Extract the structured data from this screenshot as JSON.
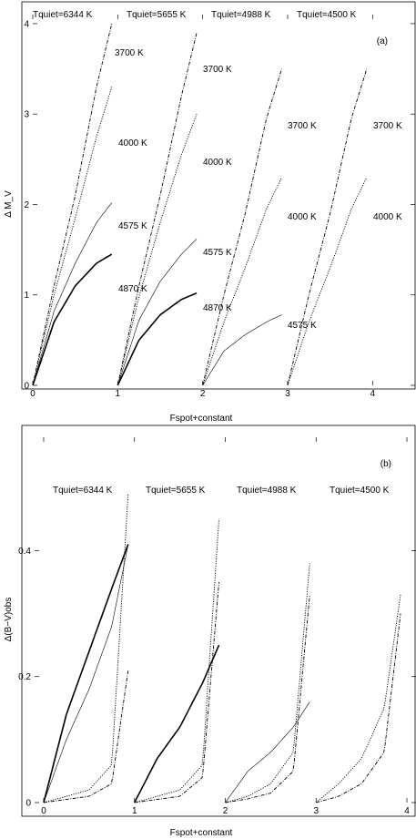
{
  "chart_data": [
    {
      "type": "line",
      "panel_label": "(a)",
      "xlabel": "Fspot+constant",
      "ylabel": "Δ M_V",
      "xlim": [
        0,
        4.5
      ],
      "ylim": [
        0,
        4.1
      ],
      "xticks": [
        0,
        1,
        2,
        3,
        4
      ],
      "yticks": [
        0,
        1,
        2,
        3,
        4
      ],
      "groups": [
        {
          "offset": 0,
          "tquiet": "Tquiet=6344 K",
          "series": [
            {
              "name": "3700 K",
              "style": "dashdot",
              "values": [
                0.45,
                1.1,
                2.1,
                3.3,
                4.0
              ]
            },
            {
              "name": "4000 K",
              "style": "dotted",
              "values": [
                0.42,
                1.0,
                1.85,
                2.75,
                3.3
              ]
            },
            {
              "name": "4575 K",
              "style": "thin",
              "values": [
                0.35,
                0.82,
                1.35,
                1.8,
                2.02
              ]
            },
            {
              "name": "4870 K",
              "style": "thick",
              "values": [
                0.3,
                0.7,
                1.1,
                1.35,
                1.45
              ]
            }
          ]
        },
        {
          "offset": 1,
          "tquiet": "Tquiet=5655 K",
          "series": [
            {
              "name": "3700 K",
              "style": "dashdot",
              "values": [
                0.45,
                1.1,
                2.1,
                3.2,
                3.9
              ]
            },
            {
              "name": "4000 K",
              "style": "dotted",
              "values": [
                0.42,
                0.98,
                1.8,
                2.55,
                3.0
              ]
            },
            {
              "name": "4575 K",
              "style": "thin",
              "values": [
                0.33,
                0.72,
                1.15,
                1.45,
                1.62
              ]
            },
            {
              "name": "4870 K",
              "style": "thick",
              "values": [
                0.22,
                0.5,
                0.78,
                0.95,
                1.02
              ]
            }
          ]
        },
        {
          "offset": 2,
          "tquiet": "Tquiet=4988 K",
          "series": [
            {
              "name": "3700 K",
              "style": "dashdot",
              "values": [
                0.42,
                1.0,
                1.9,
                2.95,
                3.5
              ]
            },
            {
              "name": "4000 K",
              "style": "dotted",
              "values": [
                0.3,
                0.7,
                1.3,
                1.95,
                2.3
              ]
            },
            {
              "name": "4575 K",
              "style": "thin",
              "values": [
                0.18,
                0.38,
                0.56,
                0.7,
                0.78
              ]
            }
          ]
        },
        {
          "offset": 3,
          "tquiet": "Tquiet=4500 K",
          "series": [
            {
              "name": "3700 K",
              "style": "dashdot",
              "values": [
                0.42,
                1.0,
                1.9,
                2.95,
                3.5
              ]
            },
            {
              "name": "4000 K",
              "style": "dotted",
              "values": [
                0.3,
                0.7,
                1.3,
                1.95,
                2.3
              ]
            }
          ]
        }
      ],
      "curve_labels": [
        {
          "group": 0,
          "text": "3700 K"
        },
        {
          "group": 0,
          "text": "4000 K"
        },
        {
          "group": 0,
          "text": "4575 K"
        },
        {
          "group": 0,
          "text": "4870 K"
        },
        {
          "group": 1,
          "text": "3700 K"
        },
        {
          "group": 1,
          "text": "4000 K"
        },
        {
          "group": 1,
          "text": "4575 K"
        },
        {
          "group": 1,
          "text": "4870 K"
        },
        {
          "group": 2,
          "text": "3700 K"
        },
        {
          "group": 2,
          "text": "4000 K"
        },
        {
          "group": 2,
          "text": "4575 K"
        },
        {
          "group": 3,
          "text": "3700 K"
        },
        {
          "group": 3,
          "text": "4000 K"
        }
      ]
    },
    {
      "type": "line",
      "panel_label": "(b)",
      "xlabel": "Fspot+constant",
      "ylabel": "Δ(B−V)obs",
      "xlim": [
        -0.1,
        4.1
      ],
      "ylim": [
        0,
        0.58
      ],
      "xticks": [
        0,
        1,
        2,
        3,
        4
      ],
      "yticks": [
        0,
        0.2,
        0.4
      ],
      "groups": [
        {
          "offset": 0,
          "tquiet": "Tquiet=6344 K",
          "series": [
            {
              "name": "3700 K",
              "style": "dotted",
              "values": [
                0.005,
                0.01,
                0.02,
                0.06,
                0.49
              ]
            },
            {
              "name": "4000 K",
              "style": "dashdot",
              "values": [
                0.002,
                0.005,
                0.01,
                0.03,
                0.21
              ]
            },
            {
              "name": "4575 K",
              "style": "thin",
              "values": [
                0.04,
                0.1,
                0.18,
                0.28,
                0.41
              ]
            },
            {
              "name": "4870 K",
              "style": "thick",
              "values": [
                0.06,
                0.14,
                0.24,
                0.34,
                0.41
              ]
            }
          ]
        },
        {
          "offset": 1,
          "tquiet": "Tquiet=5655 K",
          "series": [
            {
              "name": "3700 K",
              "style": "dotted",
              "values": [
                0.005,
                0.01,
                0.02,
                0.06,
                0.45
              ]
            },
            {
              "name": "4000 K",
              "style": "dashdot",
              "values": [
                0.002,
                0.005,
                0.01,
                0.04,
                0.35
              ]
            },
            {
              "name": "4575 K",
              "style": "thin",
              "values": [
                0.03,
                0.07,
                0.12,
                0.19,
                0.25
              ]
            },
            {
              "name": "4870 K",
              "style": "thick",
              "values": [
                0.03,
                0.07,
                0.12,
                0.19,
                0.25
              ]
            }
          ]
        },
        {
          "offset": 2,
          "tquiet": "Tquiet=4988 K",
          "series": [
            {
              "name": "3700 K",
              "style": "dotted",
              "values": [
                0.005,
                0.01,
                0.03,
                0.08,
                0.38
              ]
            },
            {
              "name": "4000 K",
              "style": "dashdot",
              "values": [
                0.002,
                0.006,
                0.015,
                0.05,
                0.33
              ]
            },
            {
              "name": "4575 K",
              "style": "thin",
              "values": [
                0.02,
                0.05,
                0.08,
                0.12,
                0.16
              ]
            }
          ]
        },
        {
          "offset": 3,
          "tquiet": "Tquiet=4500 K",
          "series": [
            {
              "name": "3700 K",
              "style": "dotted",
              "values": [
                0.01,
                0.03,
                0.07,
                0.15,
                0.33
              ]
            },
            {
              "name": "4000 K",
              "style": "dashdot",
              "values": [
                0.003,
                0.01,
                0.03,
                0.08,
                0.3
              ]
            }
          ]
        }
      ]
    }
  ]
}
